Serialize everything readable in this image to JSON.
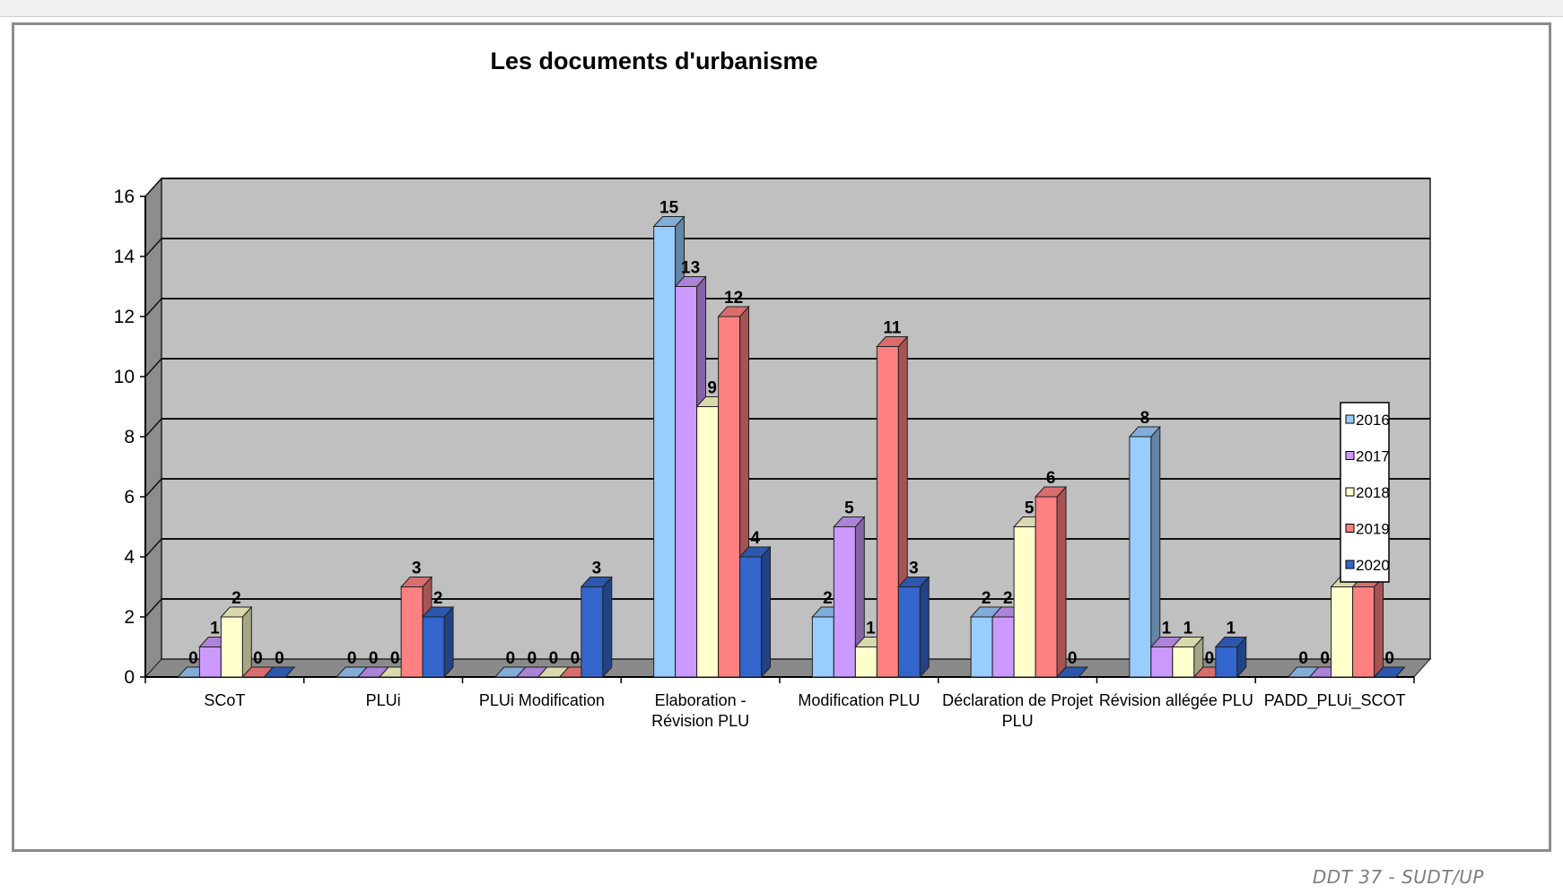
{
  "chart_data": {
    "type": "bar",
    "title": "Les documents d'urbanisme",
    "xlabel": "",
    "ylabel": "",
    "ylim": [
      0,
      16
    ],
    "yticks": [
      "0",
      "2",
      "4",
      "6",
      "8",
      "10",
      "12",
      "14",
      "16"
    ],
    "grid": true,
    "legend_position": "right",
    "categories": [
      [
        "SCoT"
      ],
      [
        "PLUi"
      ],
      [
        "PLUi Modification"
      ],
      [
        "Elaboration -",
        "Révision PLU"
      ],
      [
        "Modification PLU"
      ],
      [
        "Déclaration de Projet",
        "PLU"
      ],
      [
        "Révision allégée PLU"
      ],
      [
        "PADD_PLUi_SCOT"
      ]
    ],
    "series": [
      {
        "name": "2016",
        "color": "#99ccff",
        "values": [
          0,
          0,
          0,
          15,
          2,
          2,
          8,
          0
        ]
      },
      {
        "name": "2017",
        "color": "#cc99ff",
        "values": [
          1,
          0,
          0,
          13,
          5,
          2,
          1,
          0
        ]
      },
      {
        "name": "2018",
        "color": "#ffffcc",
        "values": [
          2,
          0,
          0,
          9,
          1,
          5,
          1,
          3
        ]
      },
      {
        "name": "2019",
        "color": "#ff8080",
        "values": [
          0,
          3,
          0,
          12,
          11,
          6,
          0,
          3
        ]
      },
      {
        "name": "2020",
        "color": "#3366cc",
        "values": [
          0,
          2,
          3,
          4,
          3,
          0,
          1,
          0
        ]
      }
    ]
  },
  "footer": {
    "credit": "DDT 37 - SUDT/UP"
  }
}
